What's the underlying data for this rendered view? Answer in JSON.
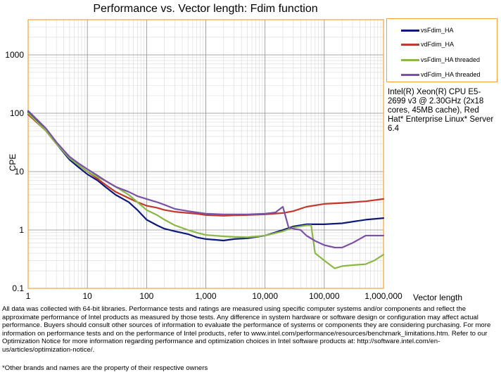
{
  "chart_data": {
    "type": "line",
    "title": "Performance vs. Vector length: Fdim function",
    "xlabel": "Vector length",
    "ylabel": "CPE",
    "x_scale": "log",
    "y_scale": "log",
    "xlim": [
      1,
      1000000
    ],
    "ylim": [
      0.1,
      4000
    ],
    "x_ticks": [
      "1",
      "10",
      "100",
      "1,000",
      "10,000",
      "100,000",
      "1,000,000"
    ],
    "y_ticks": [
      "0.1",
      "1",
      "10",
      "100",
      "1000"
    ],
    "grid": true,
    "legend_position": "top-right",
    "series": [
      {
        "name": "vsFdim_HA",
        "color": "#0d1a7a",
        "points": [
          [
            1,
            105
          ],
          [
            2,
            50
          ],
          [
            3,
            30
          ],
          [
            5,
            16
          ],
          [
            7,
            12
          ],
          [
            10,
            9
          ],
          [
            15,
            7
          ],
          [
            20,
            5.5
          ],
          [
            30,
            4
          ],
          [
            50,
            3
          ],
          [
            70,
            2.2
          ],
          [
            100,
            1.5
          ],
          [
            150,
            1.2
          ],
          [
            200,
            1.05
          ],
          [
            300,
            0.95
          ],
          [
            500,
            0.85
          ],
          [
            700,
            0.75
          ],
          [
            1000,
            0.7
          ],
          [
            2000,
            0.66
          ],
          [
            3000,
            0.7
          ],
          [
            5000,
            0.72
          ],
          [
            10000,
            0.8
          ],
          [
            20000,
            1.0
          ],
          [
            30000,
            1.15
          ],
          [
            50000,
            1.25
          ],
          [
            100000,
            1.25
          ],
          [
            200000,
            1.3
          ],
          [
            500000,
            1.5
          ],
          [
            1000000,
            1.6
          ]
        ]
      },
      {
        "name": "vdFdim_HA",
        "color": "#c0392b",
        "points": [
          [
            1,
            95
          ],
          [
            2,
            50
          ],
          [
            3,
            30
          ],
          [
            5,
            18
          ],
          [
            7,
            13
          ],
          [
            10,
            10
          ],
          [
            15,
            7.5
          ],
          [
            20,
            6
          ],
          [
            30,
            4.5
          ],
          [
            50,
            3.5
          ],
          [
            70,
            3
          ],
          [
            100,
            2.6
          ],
          [
            150,
            2.4
          ],
          [
            200,
            2.2
          ],
          [
            300,
            2.05
          ],
          [
            500,
            1.95
          ],
          [
            700,
            1.9
          ],
          [
            1000,
            1.8
          ],
          [
            2000,
            1.75
          ],
          [
            3000,
            1.78
          ],
          [
            5000,
            1.8
          ],
          [
            10000,
            1.85
          ],
          [
            20000,
            1.95
          ],
          [
            30000,
            2.1
          ],
          [
            50000,
            2.5
          ],
          [
            100000,
            2.8
          ],
          [
            200000,
            2.9
          ],
          [
            500000,
            3.1
          ],
          [
            1000000,
            3.4
          ]
        ]
      },
      {
        "name": "vsFdim_HA threaded",
        "color": "#8cb847",
        "points": [
          [
            1,
            100
          ],
          [
            2,
            50
          ],
          [
            3,
            30
          ],
          [
            5,
            17
          ],
          [
            7,
            13
          ],
          [
            10,
            10
          ],
          [
            15,
            8
          ],
          [
            20,
            7
          ],
          [
            30,
            5.5
          ],
          [
            50,
            4
          ],
          [
            70,
            3
          ],
          [
            100,
            2.2
          ],
          [
            150,
            1.8
          ],
          [
            200,
            1.5
          ],
          [
            300,
            1.2
          ],
          [
            500,
            1.0
          ],
          [
            700,
            0.9
          ],
          [
            1000,
            0.82
          ],
          [
            2000,
            0.78
          ],
          [
            3000,
            0.76
          ],
          [
            5000,
            0.75
          ],
          [
            10000,
            0.8
          ],
          [
            20000,
            0.95
          ],
          [
            30000,
            1.1
          ],
          [
            50000,
            1.2
          ],
          [
            60000,
            1.2
          ],
          [
            70000,
            0.4
          ],
          [
            100000,
            0.3
          ],
          [
            150000,
            0.22
          ],
          [
            200000,
            0.24
          ],
          [
            300000,
            0.25
          ],
          [
            500000,
            0.26
          ],
          [
            700000,
            0.3
          ],
          [
            1000000,
            0.38
          ]
        ]
      },
      {
        "name": "vdFdim_HA threaded",
        "color": "#7b52a8",
        "points": [
          [
            1,
            110
          ],
          [
            2,
            55
          ],
          [
            3,
            32
          ],
          [
            5,
            18
          ],
          [
            7,
            14
          ],
          [
            10,
            11
          ],
          [
            15,
            8.5
          ],
          [
            20,
            7
          ],
          [
            30,
            5.5
          ],
          [
            50,
            4.5
          ],
          [
            70,
            3.8
          ],
          [
            100,
            3.4
          ],
          [
            150,
            3
          ],
          [
            200,
            2.7
          ],
          [
            300,
            2.3
          ],
          [
            500,
            2.1
          ],
          [
            700,
            2.0
          ],
          [
            1000,
            1.9
          ],
          [
            2000,
            1.85
          ],
          [
            3000,
            1.85
          ],
          [
            5000,
            1.85
          ],
          [
            10000,
            1.9
          ],
          [
            15000,
            2.0
          ],
          [
            20000,
            2.5
          ],
          [
            25000,
            1.1
          ],
          [
            30000,
            1.05
          ],
          [
            40000,
            1.0
          ],
          [
            50000,
            0.8
          ],
          [
            70000,
            0.65
          ],
          [
            100000,
            0.55
          ],
          [
            150000,
            0.5
          ],
          [
            200000,
            0.5
          ],
          [
            300000,
            0.6
          ],
          [
            500000,
            0.8
          ],
          [
            1000000,
            0.8
          ]
        ]
      }
    ]
  },
  "cpu_note": "Intel(R) Xeon(R) CPU E5-2699 v3 @ 2.30GHz (2x18 cores, 45MB cache), Red Hat* Enterprise Linux* Server 6.4",
  "footnote": "All data was collected with 64-bit libraries. Performance tests and ratings are measured using specific computer systems and/or components and reflect the approximate performance of Intel products as measured by those tests. Any difference in system hardware or software design or configuration may affect actual performance. Buyers should consult other sources of information to evaluate the performance of systems or components they are considering purchasing. For more information on performance tests and on the performance of Intel products, refer to www.intel.com/performance/resources/benchmark_limitations.htm. Refer to our Optimization Notice for more information regarding performance and optimization choices in Intel software products at: http://software.intel.com/en-us/articles/optimization-notice/.",
  "trademark": "*Other brands and names are the property of their respective owners"
}
